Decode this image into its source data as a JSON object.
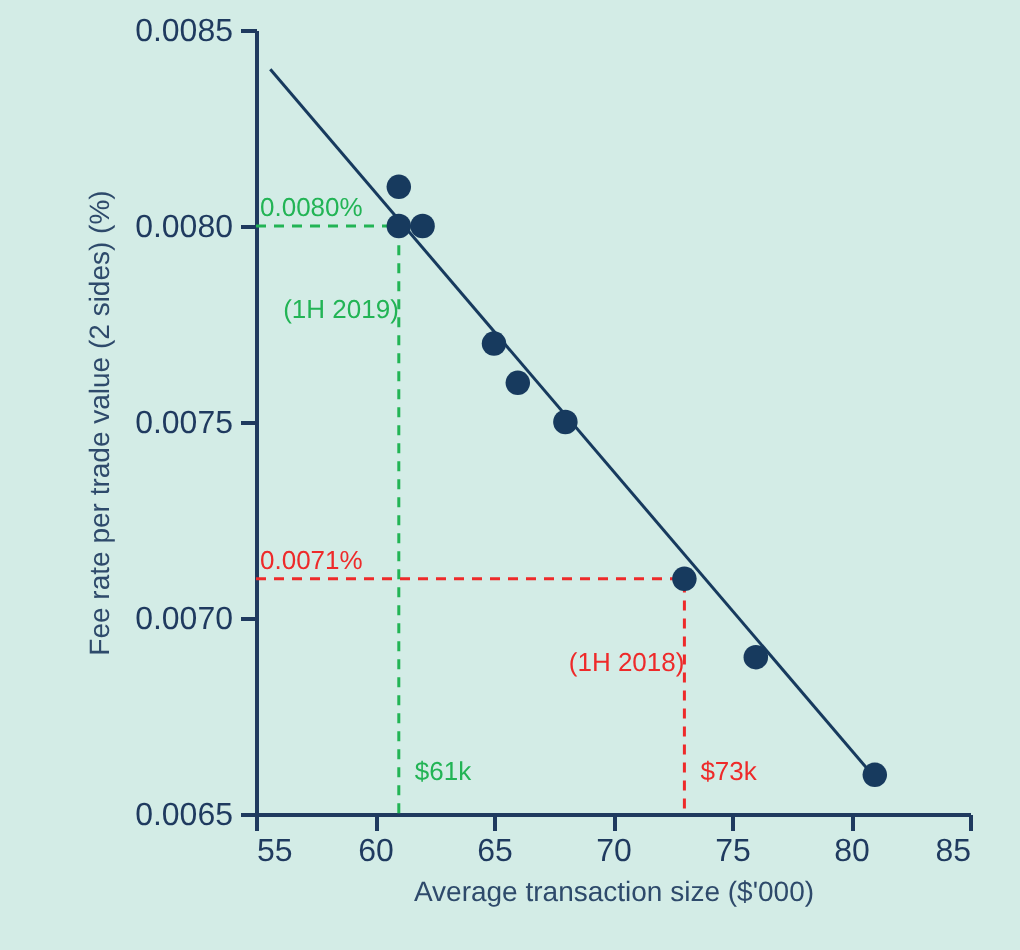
{
  "chart_data": {
    "type": "scatter",
    "xlabel": "Average transaction size ($'000)",
    "ylabel": "Fee rate per trade value (2 sides) (%)",
    "xlim": [
      55,
      85
    ],
    "xticks": [
      55,
      60,
      65,
      70,
      75,
      80,
      85
    ],
    "ylim": [
      0.0065,
      0.0085
    ],
    "yticks": [
      {
        "value": 0.0065,
        "label": "0.0065"
      },
      {
        "value": 0.007,
        "label": "0.0070"
      },
      {
        "value": 0.0075,
        "label": "0.0075"
      },
      {
        "value": 0.008,
        "label": "0.0080"
      },
      {
        "value": 0.0085,
        "label": "0.0085"
      }
    ],
    "grid": false,
    "series": [
      {
        "type": "line",
        "color": "#22b455",
        "line_style": "dashed",
        "x": [
          55,
          61,
          61
        ],
        "values": [
          0.008,
          0.008,
          0.0065
        ]
      },
      {
        "type": "line",
        "color": "#ee2a2a",
        "line_style": "dashed",
        "x": [
          55,
          73,
          73
        ],
        "values": [
          0.0071,
          0.0071,
          0.0065
        ]
      },
      {
        "type": "line",
        "color": "#173a5e",
        "line_style": "solid",
        "x": [
          55.6,
          80.9
        ],
        "values": [
          0.0084,
          0.0066
        ]
      },
      {
        "marker": "circle",
        "color": "#173a5e",
        "x": [
          61,
          61,
          62,
          65,
          66,
          68,
          73,
          76,
          81
        ],
        "values": [
          0.0081,
          0.008,
          0.008,
          0.0077,
          0.0076,
          0.0075,
          0.0071,
          0.0069,
          0.0066
        ]
      }
    ],
    "annotations": [
      {
        "text": "0.0080%",
        "x": 55,
        "y": 0.008
      },
      {
        "text": "(1H 2019)",
        "x": 61,
        "y": 0.008
      },
      {
        "text": "$61k",
        "x": 61,
        "y": 0.0065
      },
      {
        "text": "0.0071%",
        "x": 55,
        "y": 0.0071
      },
      {
        "text": "(1H 2018)",
        "x": 73,
        "y": 0.0071
      },
      {
        "text": "$73k",
        "x": 73,
        "y": 0.0065
      }
    ]
  }
}
